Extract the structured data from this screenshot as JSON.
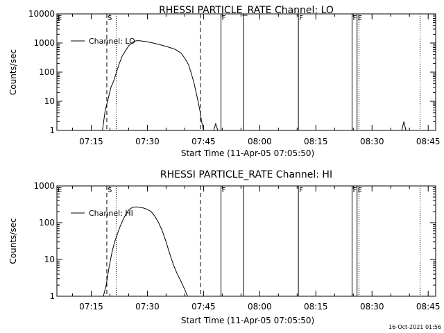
{
  "footer": {
    "timestamp": "16-Oct-2021 01:56"
  },
  "chart_data": [
    {
      "type": "line",
      "title": "RHESSI PARTICLE_RATE Channel: LO",
      "xlabel": "Start Time (11-Apr-05 07:05:50)",
      "ylabel": "Counts/sec",
      "yscale": "log",
      "ylim": [
        1,
        10000
      ],
      "yticks": [
        1,
        10,
        100,
        1000,
        10000
      ],
      "ytick_labels": [
        "1",
        "10",
        "100",
        "1000",
        "10000"
      ],
      "xlim": [
        "07:05:50",
        "08:47:00"
      ],
      "xticks": [
        "07:15",
        "07:30",
        "07:45",
        "08:00",
        "08:15",
        "08:30",
        "08:45"
      ],
      "legend": {
        "label": "Channel: LO",
        "placement": "top-left"
      },
      "series": [
        {
          "name": "Channel: LO",
          "x": [
            "07:18:00",
            "07:18:45",
            "07:19:30",
            "07:20:15",
            "07:21:00",
            "07:21:45",
            "07:22:30",
            "07:23:15",
            "07:24:00",
            "07:25:00",
            "07:26:00",
            "07:27:00",
            "07:28:00",
            "07:29:00",
            "07:30:00",
            "07:31:30",
            "07:33:00",
            "07:34:30",
            "07:36:00",
            "07:37:30",
            "07:39:00",
            "07:40:00",
            "07:41:00",
            "07:41:45",
            "07:42:30",
            "07:43:15",
            "07:44:00",
            "07:44:30",
            "07:45:00"
          ],
          "y": [
            1,
            5,
            12,
            30,
            50,
            100,
            200,
            350,
            500,
            800,
            1050,
            1200,
            1200,
            1150,
            1100,
            1000,
            900,
            800,
            700,
            600,
            450,
            300,
            180,
            90,
            40,
            15,
            5,
            2,
            1
          ]
        }
      ],
      "vlines_dashed": [
        "07:19:10",
        "07:44:10"
      ],
      "vlines_dotted": [
        "07:21:40",
        "08:26:30",
        "08:42:50"
      ],
      "vlines_solid": [
        "07:49:40",
        "07:55:40",
        "08:10:20",
        "08:24:40",
        "08:26:00"
      ],
      "extra_points": [
        {
          "x": "07:48:15",
          "y": 1.7
        },
        {
          "x": "08:38:30",
          "y": 2
        }
      ],
      "markers": [
        {
          "x": "07:05:50",
          "label": "E"
        },
        {
          "x": "07:19:10",
          "label": "S"
        },
        {
          "x": "07:49:40",
          "label": "F"
        },
        {
          "x": "08:10:20",
          "label": "F"
        },
        {
          "x": "08:24:40",
          "label": "F"
        },
        {
          "x": "08:26:00",
          "label": "E"
        }
      ]
    },
    {
      "type": "line",
      "title": "RHESSI PARTICLE_RATE Channel: HI",
      "xlabel": "Start Time (11-Apr-05 07:05:50)",
      "ylabel": "Counts/sec",
      "yscale": "log",
      "ylim": [
        1,
        1000
      ],
      "yticks": [
        1,
        10,
        100,
        1000
      ],
      "ytick_labels": [
        "1",
        "10",
        "100",
        "1000"
      ],
      "xlim": [
        "07:05:50",
        "08:47:00"
      ],
      "xticks": [
        "07:15",
        "07:30",
        "07:45",
        "08:00",
        "08:15",
        "08:30",
        "08:45"
      ],
      "legend": {
        "label": "Channel: HI",
        "placement": "top-left"
      },
      "series": [
        {
          "name": "Channel: HI",
          "x": [
            "07:18:15",
            "07:19:00",
            "07:19:45",
            "07:20:30",
            "07:21:15",
            "07:22:00",
            "07:22:45",
            "07:23:30",
            "07:24:15",
            "07:25:00",
            "07:26:00",
            "07:27:00",
            "07:28:00",
            "07:29:00",
            "07:30:00",
            "07:31:00",
            "07:32:00",
            "07:33:00",
            "07:34:00",
            "07:35:00",
            "07:36:00",
            "07:37:00",
            "07:38:00",
            "07:39:00",
            "07:40:00",
            "07:40:45",
            "07:41:30"
          ],
          "y": [
            1,
            2,
            6,
            15,
            30,
            50,
            80,
            120,
            170,
            220,
            260,
            270,
            260,
            250,
            230,
            200,
            150,
            100,
            60,
            30,
            14,
            7,
            4,
            2.5,
            1.5,
            1,
            1
          ]
        }
      ],
      "vlines_dashed": [
        "07:19:10",
        "07:44:10"
      ],
      "vlines_dotted": [
        "07:21:40",
        "08:26:30",
        "08:42:50"
      ],
      "vlines_solid": [
        "07:49:40",
        "07:55:40",
        "08:10:20",
        "08:24:40",
        "08:26:00"
      ],
      "extra_points": [],
      "markers": [
        {
          "x": "07:05:50",
          "label": "E"
        },
        {
          "x": "07:19:10",
          "label": "S"
        },
        {
          "x": "07:49:40",
          "label": "F"
        },
        {
          "x": "08:10:20",
          "label": "F"
        },
        {
          "x": "08:24:40",
          "label": "F"
        },
        {
          "x": "08:26:00",
          "label": "E"
        }
      ]
    }
  ]
}
